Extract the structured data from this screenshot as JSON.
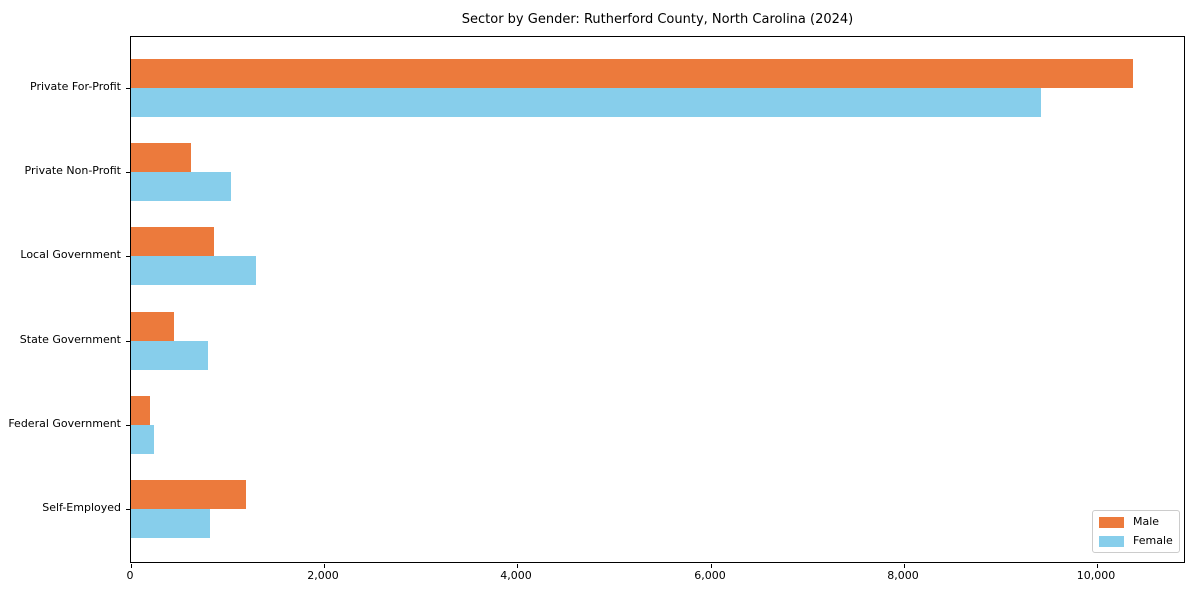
{
  "title": "Sector by Gender: Rutherford County, North Carolina (2024)",
  "chart_data": {
    "type": "bar",
    "orientation": "horizontal",
    "title": "Sector by Gender: Rutherford County, North Carolina (2024)",
    "xlabel": "",
    "ylabel": "",
    "categories": [
      "Private For-Profit",
      "Private Non-Profit",
      "Local Government",
      "State Government",
      "Federal Government",
      "Self-Employed"
    ],
    "series": [
      {
        "name": "Male",
        "color": "#EC7A3C",
        "values": [
          10370,
          620,
          855,
          440,
          200,
          1190
        ]
      },
      {
        "name": "Female",
        "color": "#87CEEB",
        "values": [
          9420,
          1030,
          1295,
          800,
          235,
          820
        ]
      }
    ],
    "xlim": [
      0,
      10900
    ],
    "x_ticks": [
      0,
      2000,
      4000,
      6000,
      8000,
      10000
    ],
    "x_tick_labels": [
      "0",
      "2,000",
      "4,000",
      "6,000",
      "8,000",
      "10,000"
    ],
    "grid": false,
    "legend_position": "lower right",
    "axis_color": "#000000",
    "background_color": "#ffffff"
  }
}
